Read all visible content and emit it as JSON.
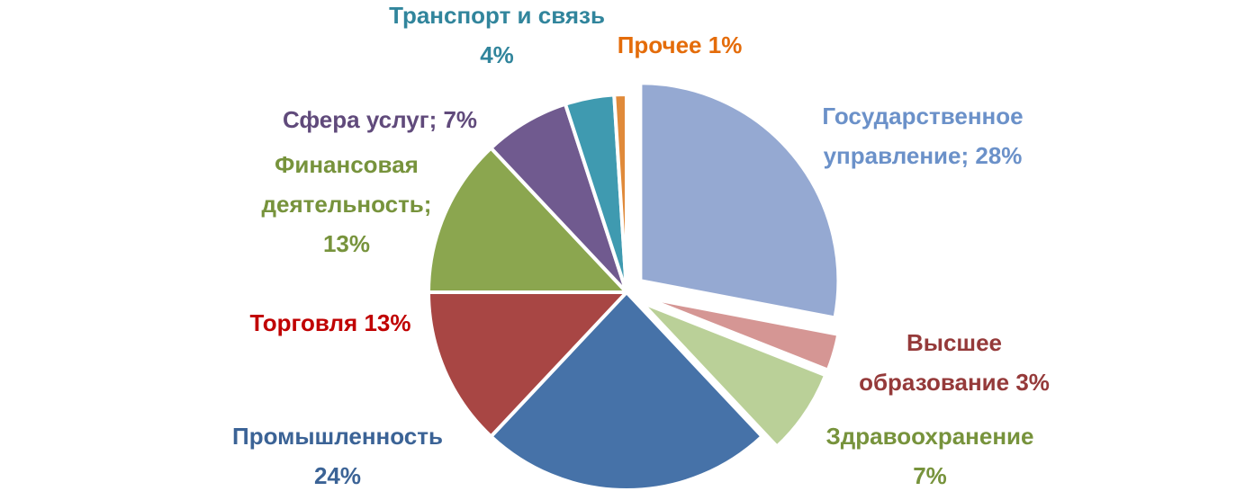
{
  "chart_data": {
    "type": "pie",
    "title": "",
    "legend": "none",
    "slices": [
      {
        "name": "Государственное управление",
        "value": 28,
        "color": "#95a9d2",
        "label_lines": [
          "Государственное",
          "управление; 28%"
        ],
        "label_color": "#6b91c9"
      },
      {
        "name": "Высшее образование",
        "value": 3,
        "color": "#d59694",
        "label_lines": [
          "Высшее",
          "образование 3%"
        ],
        "label_color": "#953a3a"
      },
      {
        "name": "Здравоохранение",
        "value": 7,
        "color": "#bad098",
        "label_lines": [
          "Здравоохранение",
          "7%"
        ],
        "label_color": "#77933c"
      },
      {
        "name": "Промышленность",
        "value": 24,
        "color": "#4672a8",
        "label_lines": [
          "Промышленность",
          "24%"
        ],
        "label_color": "#3b6396"
      },
      {
        "name": "Торговля",
        "value": 13,
        "color": "#a84644",
        "label_lines": [
          "Торговля 13%"
        ],
        "label_color": "#c00000"
      },
      {
        "name": "Финансовая деятельность",
        "value": 13,
        "color": "#8ba64f",
        "label_lines": [
          "Финансовая",
          "деятельность;",
          "13%"
        ],
        "label_color": "#77933c"
      },
      {
        "name": "Сфера услуг",
        "value": 7,
        "color": "#705a8f",
        "label_lines": [
          "Сфера услуг; 7%"
        ],
        "label_color": "#604a7b"
      },
      {
        "name": "Транспорт и связь",
        "value": 4,
        "color": "#3f9ab0",
        "label_lines": [
          "Транспорт и связь",
          "4%"
        ],
        "label_color": "#31859c"
      },
      {
        "name": "Прочее",
        "value": 1,
        "color": "#e08a3a",
        "label_lines": [
          "Прочее 1%"
        ],
        "label_color": "#e46c0a"
      }
    ]
  }
}
